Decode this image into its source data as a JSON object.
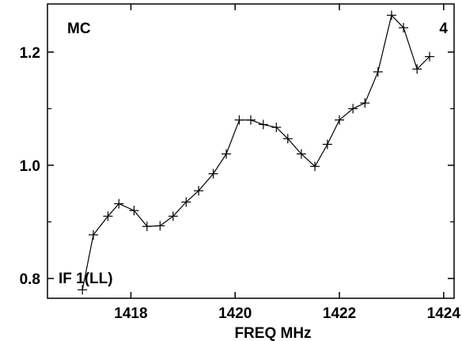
{
  "chart_data": {
    "type": "line",
    "title": "",
    "xlabel": "FREQ MHz",
    "ylabel": "",
    "corner_label_left": "MC",
    "corner_label_right": "4",
    "annotation": "IF 1(LL)",
    "xlim": [
      1416.4,
      1424.2
    ],
    "ylim": [
      0.765,
      1.285
    ],
    "x_ticks": [
      1418,
      1420,
      1422,
      1424
    ],
    "x_tick_labels": [
      "1418",
      "1420",
      "1422",
      "1424"
    ],
    "y_ticks": [
      0.8,
      1.0,
      1.2
    ],
    "y_tick_labels": [
      "0.8",
      "1.0",
      "1.2"
    ],
    "grid": false,
    "marker": "plus",
    "line_color": "#000000",
    "series": [
      {
        "x": [
          1417.07,
          1417.28,
          1417.56,
          1417.77,
          1418.06,
          1418.31,
          1418.56,
          1418.81,
          1419.06,
          1419.3,
          1419.58,
          1419.83,
          1420.08,
          1420.3,
          1420.54,
          1420.79,
          1421.01,
          1421.27,
          1421.53,
          1421.77,
          1422.0,
          1422.26,
          1422.49,
          1422.74,
          1423.0,
          1423.23,
          1423.49,
          1423.73
        ],
        "values": [
          0.78,
          0.877,
          0.91,
          0.932,
          0.92,
          0.892,
          0.893,
          0.91,
          0.935,
          0.955,
          0.985,
          1.02,
          1.08,
          1.08,
          1.072,
          1.067,
          1.047,
          1.02,
          0.998,
          1.037,
          1.08,
          1.1,
          1.11,
          1.165,
          1.265,
          1.243,
          1.17,
          1.192
        ]
      }
    ]
  }
}
